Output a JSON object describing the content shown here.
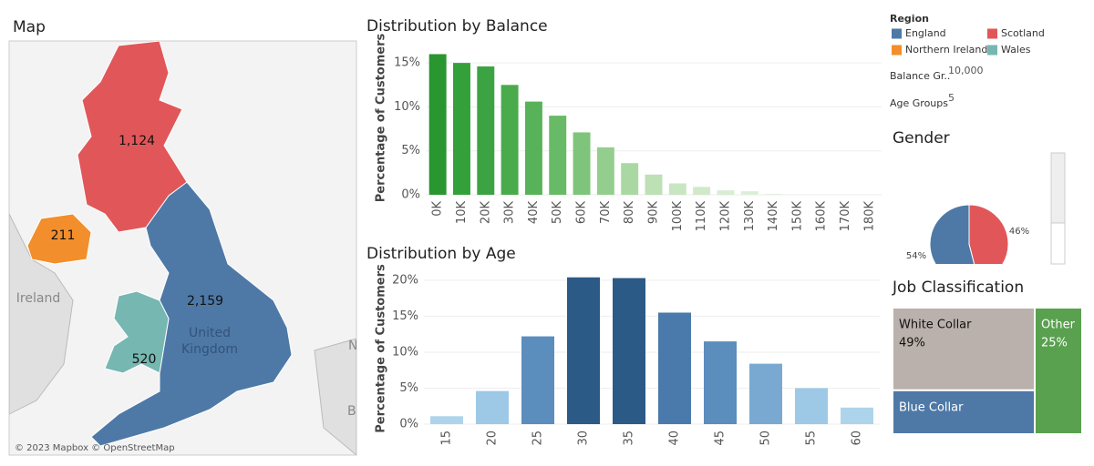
{
  "chart_data": [
    {
      "type": "map",
      "title": "Map",
      "legend_title": "Region",
      "regions": [
        {
          "name": "England",
          "color": "#4e79a7",
          "value": 2159,
          "value_label": "2,159"
        },
        {
          "name": "Scotland",
          "color": "#e15759",
          "value": 1124,
          "value_label": "1,124"
        },
        {
          "name": "Northern Ireland",
          "color": "#f28e2b",
          "value": 211,
          "value_label": "211"
        },
        {
          "name": "Wales",
          "color": "#76b7b2",
          "value": 520,
          "value_label": "520"
        }
      ],
      "place_labels": [
        "Ireland",
        "United",
        "Kingdom",
        "Ne",
        "Be"
      ],
      "attribution": "© 2023 Mapbox © OpenStreetMap"
    },
    {
      "type": "bar",
      "title": "Distribution by Balance",
      "y_label": "Percentage of Customers",
      "categories": [
        "0K",
        "10K",
        "20K",
        "30K",
        "40K",
        "50K",
        "60K",
        "70K",
        "80K",
        "90K",
        "100K",
        "110K",
        "120K",
        "130K",
        "140K",
        "150K",
        "160K",
        "170K",
        "180K"
      ],
      "values": [
        16.0,
        15.0,
        14.6,
        12.5,
        10.6,
        9.0,
        7.1,
        5.4,
        3.6,
        2.3,
        1.3,
        0.9,
        0.5,
        0.4,
        0.1,
        0,
        0,
        0,
        0
      ],
      "colors": [
        "#2a9630",
        "#34a03a",
        "#3ba341",
        "#4aab4d",
        "#58b25a",
        "#69ba67",
        "#7fc47b",
        "#94ce8f",
        "#aad8a3",
        "#bde0b5",
        "#c9e6c2",
        "#d0e9ca",
        "#d8edd2",
        "#dbefd6",
        "#e0f1dc",
        "#e4f3e0",
        "#e4f3e0",
        "#e4f3e0",
        "#e4f3e0"
      ],
      "ylim": [
        0,
        17.5
      ],
      "yticks": [
        {
          "value": 0,
          "label": "0%"
        },
        {
          "value": 5,
          "label": "5%"
        },
        {
          "value": 10,
          "label": "10%"
        },
        {
          "value": 15,
          "label": "15%"
        }
      ],
      "grid": true
    },
    {
      "type": "bar",
      "title": "Distribution by Age",
      "y_label": "Percentage of Customers",
      "categories": [
        "15",
        "20",
        "25",
        "30",
        "35",
        "40",
        "45",
        "50",
        "55",
        "60"
      ],
      "values": [
        1.1,
        4.6,
        12.2,
        20.4,
        20.3,
        15.5,
        11.5,
        8.4,
        5.0,
        2.3
      ],
      "colors": [
        "#aed4ec",
        "#9dc8e6",
        "#5b8dbd",
        "#2c5a87",
        "#2c5a87",
        "#4a7aab",
        "#5b8dbd",
        "#79a9d1",
        "#9dc8e6",
        "#aed4ec"
      ],
      "ylim": [
        0,
        21
      ],
      "yticks": [
        {
          "value": 0,
          "label": "0%"
        },
        {
          "value": 5,
          "label": "5%"
        },
        {
          "value": 10,
          "label": "10%"
        },
        {
          "value": 15,
          "label": "15%"
        },
        {
          "value": 20,
          "label": "20%"
        }
      ],
      "grid": true
    },
    {
      "type": "pie",
      "title": "Gender",
      "values": [
        54,
        46
      ],
      "value_labels": [
        "54%",
        "46%"
      ],
      "colors": [
        "#4e79a7",
        "#e15759"
      ]
    },
    {
      "type": "treemap",
      "title": "Job Classification",
      "categories": [
        "White Collar",
        "Other",
        "Blue Collar"
      ],
      "values": [
        49,
        25,
        26
      ],
      "value_labels": [
        "49%",
        "25%",
        null
      ],
      "colors": [
        "#bab0ac",
        "#59a14f",
        "#4e79a7"
      ]
    }
  ],
  "parameters": [
    {
      "label": "Balance Gr..",
      "value": "10,000"
    },
    {
      "label": "Age Groups",
      "value": "5"
    }
  ]
}
